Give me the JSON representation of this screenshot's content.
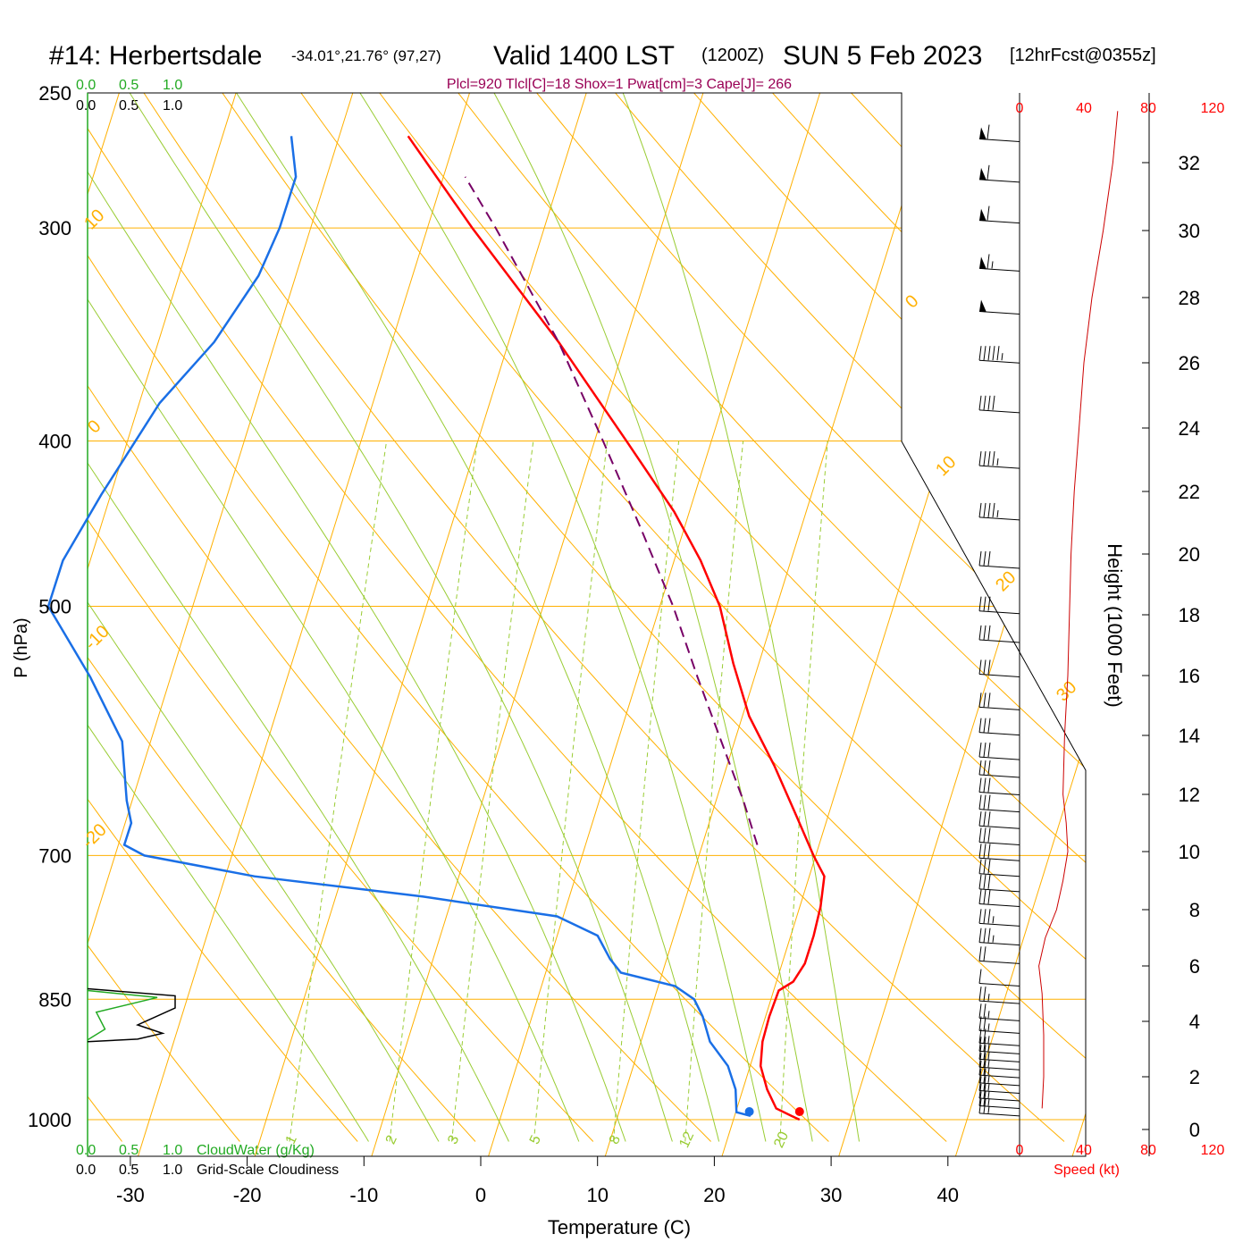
{
  "header": {
    "station": "#14: Herbertsdale",
    "coords": "-34.01°,21.76° (97,27)",
    "valid": "Valid 1400 LST",
    "zulu": "(1200Z)",
    "date": "SUN 5 Feb 2023",
    "forecast": "[12hrFcst@0355z]",
    "params": "Plcl=920 Tlcl[C]=18 Shox=1 Pwat[cm]=3 Cape[J]= 266"
  },
  "axes": {
    "xlabel": "Temperature (C)",
    "ylabel": "P (hPa)",
    "height_label": "Height (1000 Feet)",
    "speed_label": "Speed (kt)",
    "cloudwater_label": "CloudWater (g/Kg)",
    "cloudiness_label": "Grid-Scale Cloudiness"
  },
  "chart_data": {
    "type": "skewt",
    "title": "#14: Herbertsdale Valid 1400 LST (1200Z) SUN 5 Feb 2023",
    "xlabel": "Temperature (C)",
    "ylabel": "P (hPa)",
    "xlim": [
      -33,
      43
    ],
    "ylim": [
      1017,
      250
    ],
    "temperature_ticks": [
      "-30",
      "-20",
      "-10",
      "0",
      "10",
      "20",
      "30",
      "40"
    ],
    "temperature_tick_values": [
      -30,
      -20,
      -10,
      0,
      10,
      20,
      30,
      40
    ],
    "pressure_ticks": [
      "250",
      "300",
      "400",
      "500",
      "700",
      "850",
      "1000"
    ],
    "pressure_tick_values": [
      250,
      300,
      400,
      500,
      700,
      850,
      1000
    ],
    "height_ticks": [
      "0",
      "2",
      "4",
      "6",
      "8",
      "10",
      "12",
      "14",
      "16",
      "18",
      "20",
      "22",
      "24",
      "26",
      "28",
      "30",
      "32"
    ],
    "height_tick_values": [
      0,
      2,
      4,
      6,
      8,
      10,
      12,
      14,
      16,
      18,
      20,
      22,
      24,
      26,
      28,
      30,
      32
    ],
    "speed_ticks": [
      "0",
      "40",
      "80",
      "120"
    ],
    "speed_tick_values": [
      0,
      40,
      80,
      120
    ],
    "cloud_scale_labels": [
      "0.0",
      "0.5",
      "1.0"
    ],
    "isotherm_labels": [
      "10",
      "0",
      "-10",
      "-20",
      "0",
      "10",
      "20",
      "30"
    ],
    "mixing_ratio_labels": [
      "1",
      "2",
      "3",
      "5",
      "8",
      "12",
      "20"
    ],
    "mixing_ratio_values": [
      1,
      2,
      3,
      5,
      8,
      12,
      20
    ],
    "series": [
      {
        "name": "temperature",
        "color": "#ff0000",
        "points": [
          {
            "p": 1000,
            "t": 26.3
          },
          {
            "p": 995,
            "t": 25.5
          },
          {
            "p": 985,
            "t": 24.0
          },
          {
            "p": 960,
            "t": 22.7
          },
          {
            "p": 930,
            "t": 21.5
          },
          {
            "p": 900,
            "t": 21.0
          },
          {
            "p": 870,
            "t": 20.9
          },
          {
            "p": 840,
            "t": 21.0
          },
          {
            "p": 830,
            "t": 22.0
          },
          {
            "p": 810,
            "t": 22.5
          },
          {
            "p": 780,
            "t": 22.5
          },
          {
            "p": 750,
            "t": 22.3
          },
          {
            "p": 720,
            "t": 21.8
          },
          {
            "p": 700,
            "t": 20.3
          },
          {
            "p": 660,
            "t": 17.5
          },
          {
            "p": 620,
            "t": 14.5
          },
          {
            "p": 580,
            "t": 11.0
          },
          {
            "p": 540,
            "t": 8.2
          },
          {
            "p": 500,
            "t": 5.5
          },
          {
            "p": 470,
            "t": 2.6
          },
          {
            "p": 440,
            "t": -1.0
          },
          {
            "p": 400,
            "t": -7.0
          },
          {
            "p": 350,
            "t": -15.5
          },
          {
            "p": 300,
            "t": -26.0
          },
          {
            "p": 265,
            "t": -34.0
          }
        ]
      },
      {
        "name": "dewpoint",
        "color": "#1a6fe6",
        "points": [
          {
            "p": 995,
            "t": 22.0
          },
          {
            "p": 990,
            "t": 20.7
          },
          {
            "p": 960,
            "t": 20.0
          },
          {
            "p": 930,
            "t": 18.7
          },
          {
            "p": 900,
            "t": 16.5
          },
          {
            "p": 870,
            "t": 15.2
          },
          {
            "p": 850,
            "t": 14.0
          },
          {
            "p": 835,
            "t": 12.0
          },
          {
            "p": 820,
            "t": 7.0
          },
          {
            "p": 805,
            "t": 5.7
          },
          {
            "p": 780,
            "t": 4.0
          },
          {
            "p": 760,
            "t": 0.0
          },
          {
            "p": 740,
            "t": -12.0
          },
          {
            "p": 720,
            "t": -27.0
          },
          {
            "p": 700,
            "t": -37.0
          },
          {
            "p": 690,
            "t": -39.0
          },
          {
            "p": 670,
            "t": -39.0
          },
          {
            "p": 650,
            "t": -40.0
          },
          {
            "p": 600,
            "t": -42.0
          },
          {
            "p": 550,
            "t": -46.5
          },
          {
            "p": 500,
            "t": -52.0
          },
          {
            "p": 470,
            "t": -52.0
          },
          {
            "p": 430,
            "t": -50.5
          },
          {
            "p": 380,
            "t": -48.0
          },
          {
            "p": 350,
            "t": -45.0
          },
          {
            "p": 320,
            "t": -43.0
          },
          {
            "p": 300,
            "t": -42.5
          },
          {
            "p": 280,
            "t": -42.5
          },
          {
            "p": 265,
            "t": -44.0
          }
        ]
      },
      {
        "name": "parcel",
        "color": "#770066",
        "points": [
          {
            "p": 690,
            "t": 15.2
          },
          {
            "p": 650,
            "t": 12.8
          },
          {
            "p": 600,
            "t": 9.3
          },
          {
            "p": 550,
            "t": 5.5
          },
          {
            "p": 500,
            "t": 1.5
          },
          {
            "p": 450,
            "t": -3.4
          },
          {
            "p": 400,
            "t": -9.0
          },
          {
            "p": 350,
            "t": -15.5
          },
          {
            "p": 300,
            "t": -24.0
          },
          {
            "p": 280,
            "t": -28.0
          }
        ]
      }
    ],
    "surface_markers": [
      {
        "name": "surface-temperature",
        "p": 1000,
        "t": 26.3,
        "color": "#ff0000"
      },
      {
        "name": "surface-dewpoint",
        "p": 1000,
        "t": 22.0,
        "color": "#1a6fe6"
      }
    ],
    "wind_speed_profile": {
      "color": "#cc0000",
      "points": [
        {
          "h": 0.8,
          "kt": 14
        },
        {
          "h": 2.0,
          "kt": 15
        },
        {
          "h": 3.5,
          "kt": 15
        },
        {
          "h": 5.0,
          "kt": 14
        },
        {
          "h": 6.0,
          "kt": 12
        },
        {
          "h": 7.0,
          "kt": 16
        },
        {
          "h": 8.0,
          "kt": 23
        },
        {
          "h": 9.0,
          "kt": 27
        },
        {
          "h": 10.0,
          "kt": 30
        },
        {
          "h": 11.0,
          "kt": 29
        },
        {
          "h": 12.0,
          "kt": 27
        },
        {
          "h": 14.0,
          "kt": 28
        },
        {
          "h": 16.0,
          "kt": 30
        },
        {
          "h": 18.0,
          "kt": 31
        },
        {
          "h": 20.0,
          "kt": 32
        },
        {
          "h": 22.0,
          "kt": 34
        },
        {
          "h": 24.0,
          "kt": 37
        },
        {
          "h": 26.0,
          "kt": 40
        },
        {
          "h": 28.0,
          "kt": 45
        },
        {
          "h": 30.0,
          "kt": 52
        },
        {
          "h": 32.0,
          "kt": 58
        },
        {
          "h": 33.5,
          "kt": 61
        }
      ]
    },
    "wind_barbs": [
      {
        "p": 995,
        "spd": 15
      },
      {
        "p": 985,
        "spd": 15
      },
      {
        "p": 975,
        "spd": 15
      },
      {
        "p": 965,
        "spd": 15
      },
      {
        "p": 955,
        "spd": 15
      },
      {
        "p": 945,
        "spd": 15
      },
      {
        "p": 935,
        "spd": 15
      },
      {
        "p": 925,
        "spd": 15
      },
      {
        "p": 915,
        "spd": 15
      },
      {
        "p": 905,
        "spd": 15
      },
      {
        "p": 890,
        "spd": 15
      },
      {
        "p": 875,
        "spd": 15
      },
      {
        "p": 855,
        "spd": 15
      },
      {
        "p": 835,
        "spd": 10
      },
      {
        "p": 810,
        "spd": 20
      },
      {
        "p": 790,
        "spd": 25
      },
      {
        "p": 770,
        "spd": 25
      },
      {
        "p": 750,
        "spd": 30
      },
      {
        "p": 735,
        "spd": 30
      },
      {
        "p": 720,
        "spd": 30
      },
      {
        "p": 705,
        "spd": 30
      },
      {
        "p": 690,
        "spd": 30
      },
      {
        "p": 675,
        "spd": 30
      },
      {
        "p": 660,
        "spd": 30
      },
      {
        "p": 645,
        "spd": 30
      },
      {
        "p": 630,
        "spd": 30
      },
      {
        "p": 615,
        "spd": 30
      },
      {
        "p": 595,
        "spd": 30
      },
      {
        "p": 575,
        "spd": 30
      },
      {
        "p": 550,
        "spd": 30
      },
      {
        "p": 525,
        "spd": 30
      },
      {
        "p": 505,
        "spd": 30
      },
      {
        "p": 475,
        "spd": 30
      },
      {
        "p": 445,
        "spd": 35
      },
      {
        "p": 415,
        "spd": 35
      },
      {
        "p": 385,
        "spd": 40
      },
      {
        "p": 360,
        "spd": 45
      },
      {
        "p": 337,
        "spd": 50
      },
      {
        "p": 318,
        "spd": 55
      },
      {
        "p": 298,
        "spd": 60
      },
      {
        "p": 282,
        "spd": 60
      },
      {
        "p": 267,
        "spd": 60
      }
    ],
    "cloud_water_profile": {
      "color": "#22aa22",
      "points": [
        {
          "p": 840,
          "v": 0.0
        },
        {
          "p": 848,
          "v": 0.4
        },
        {
          "p": 865,
          "v": 0.05
        },
        {
          "p": 885,
          "v": 0.1
        },
        {
          "p": 898,
          "v": 0.0
        }
      ]
    },
    "cloudiness_profile": {
      "color": "#000000",
      "points": [
        {
          "p": 838,
          "v": 0.0
        },
        {
          "p": 846,
          "v": 0.7
        },
        {
          "p": 860,
          "v": 0.7
        },
        {
          "p": 880,
          "v": 0.4
        },
        {
          "p": 890,
          "v": 0.6
        },
        {
          "p": 897,
          "v": 0.4
        },
        {
          "p": 900,
          "v": 0.0
        }
      ]
    }
  }
}
